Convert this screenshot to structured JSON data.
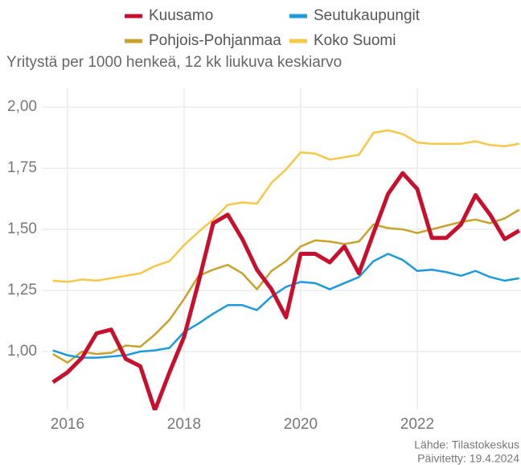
{
  "chart_data": {
    "type": "line",
    "subtitle": "Yritystä per 1000 henkeä, 12 kk liukuva keskiarvo",
    "source": "Lähde: Tilastokeskus",
    "updated": "Päivitetty: 19.4.2024",
    "x": [
      2015.75,
      2016,
      2016.25,
      2016.5,
      2016.75,
      2017,
      2017.25,
      2017.5,
      2017.75,
      2018,
      2018.25,
      2018.5,
      2018.75,
      2019,
      2019.25,
      2019.5,
      2019.75,
      2020,
      2020.25,
      2020.5,
      2020.75,
      2021,
      2021.25,
      2021.5,
      2021.75,
      2022,
      2022.25,
      2022.5,
      2022.75,
      2023,
      2023.25,
      2023.5,
      2023.75
    ],
    "series": [
      {
        "name": "Kuusamo",
        "color": "#c8102e",
        "width": 5,
        "values": [
          0.875,
          0.915,
          0.975,
          1.075,
          1.09,
          0.97,
          0.94,
          0.76,
          0.915,
          1.06,
          1.285,
          1.525,
          1.56,
          1.46,
          1.335,
          1.255,
          1.14,
          1.4,
          1.4,
          1.365,
          1.43,
          1.32,
          1.485,
          1.645,
          1.73,
          1.665,
          1.465,
          1.465,
          1.52,
          1.64,
          1.56,
          1.46,
          1.495
        ]
      },
      {
        "name": "Seutukaupungit",
        "color": "#1a9bdb",
        "width": 2.5,
        "values": [
          1.005,
          0.985,
          0.975,
          0.975,
          0.98,
          0.985,
          1.0,
          1.005,
          1.015,
          1.08,
          1.115,
          1.155,
          1.19,
          1.19,
          1.17,
          1.225,
          1.265,
          1.285,
          1.28,
          1.255,
          1.28,
          1.305,
          1.37,
          1.4,
          1.375,
          1.33,
          1.335,
          1.325,
          1.31,
          1.33,
          1.305,
          1.29,
          1.3
        ]
      },
      {
        "name": "Pohjois-Pohjanmaa",
        "color": "#c9a227",
        "width": 2.5,
        "values": [
          0.99,
          0.955,
          1.0,
          0.99,
          0.995,
          1.025,
          1.02,
          1.07,
          1.13,
          1.215,
          1.31,
          1.335,
          1.355,
          1.32,
          1.255,
          1.33,
          1.37,
          1.43,
          1.455,
          1.45,
          1.44,
          1.45,
          1.52,
          1.505,
          1.5,
          1.485,
          1.5,
          1.515,
          1.53,
          1.54,
          1.525,
          1.545,
          1.58
        ]
      },
      {
        "name": "Koko Suomi",
        "color": "#f6c844",
        "width": 2.5,
        "values": [
          1.29,
          1.285,
          1.295,
          1.29,
          1.3,
          1.31,
          1.32,
          1.35,
          1.37,
          1.435,
          1.49,
          1.54,
          1.6,
          1.61,
          1.605,
          1.69,
          1.745,
          1.815,
          1.81,
          1.785,
          1.795,
          1.805,
          1.895,
          1.905,
          1.89,
          1.855,
          1.85,
          1.85,
          1.85,
          1.86,
          1.845,
          1.84,
          1.85
        ]
      }
    ],
    "xlim": [
      2015.56,
      2023.78
    ],
    "ylim": [
      0.76,
      2.076
    ],
    "xticks": [
      2016,
      2018,
      2020,
      2022
    ],
    "yticks": [
      {
        "value": 1.0,
        "label": "1,00"
      },
      {
        "value": 1.25,
        "label": "1,25"
      },
      {
        "value": 1.5,
        "label": "1,50"
      },
      {
        "value": 1.75,
        "label": "1,75"
      },
      {
        "value": 2.0,
        "label": "2,00"
      }
    ],
    "grid": true
  }
}
